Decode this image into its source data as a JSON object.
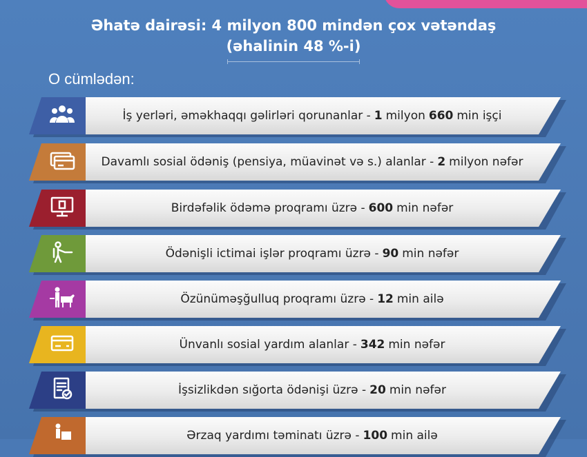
{
  "header": {
    "coverage": "Əhatə dairəsi: 4 milyon 800 mindən çox vətəndaş",
    "share": "(əhalinin 48 %-i)"
  },
  "intro": "O cümlədən:",
  "rows": [
    {
      "pre": "İş yerləri, əməkhaqqı gəlirləri qorunanlar - ",
      "num": "1",
      "mid": "milyon",
      "num2": "660",
      "post": "min işçi",
      "color": "#3e5fa6",
      "icon": "people-group-icon"
    },
    {
      "pre": "Davamlı sosial ödəniş (pensiya, müavinət və s.) alanlar - ",
      "num": "2",
      "mid": "",
      "num2": "",
      "post": "milyon nəfər",
      "color": "#c47b3a",
      "icon": "cards-icon"
    },
    {
      "pre": "Birdəfəlik ödəmə proqramı üzrə - ",
      "num": "600",
      "mid": "",
      "num2": "",
      "post": "min nəfər",
      "color": "#9b1f2e",
      "icon": "monitor-icon"
    },
    {
      "pre": "Ödənişli ictimai işlər proqramı üzrə - ",
      "num": "90",
      "mid": "",
      "num2": "",
      "post": "min nəfər",
      "color": "#6f9a3a",
      "icon": "worker-icon"
    },
    {
      "pre": "Özünüməşğulluq proqramı üzrə - ",
      "num": "12",
      "mid": "",
      "num2": "",
      "post": "min ailə",
      "color": "#a53aa3",
      "icon": "farmer-cow-icon"
    },
    {
      "pre": "Ünvanlı sosial yardım alanlar - ",
      "num": "342",
      "mid": "",
      "num2": "",
      "post": "min nəfər",
      "color": "#e8b51f",
      "icon": "credit-card-icon"
    },
    {
      "pre": "İşsizlikdən sığorta ödənişi üzrə - ",
      "num": "20",
      "mid": "",
      "num2": "",
      "post": "min nəfər",
      "color": "#2c3f86",
      "icon": "document-check-icon"
    },
    {
      "pre": "Ərzaq yardımı təminatı üzrə - ",
      "num": "100",
      "mid": "",
      "num2": "",
      "post": "min ailə",
      "color": "#c0692e",
      "icon": "food-box-icon"
    }
  ]
}
